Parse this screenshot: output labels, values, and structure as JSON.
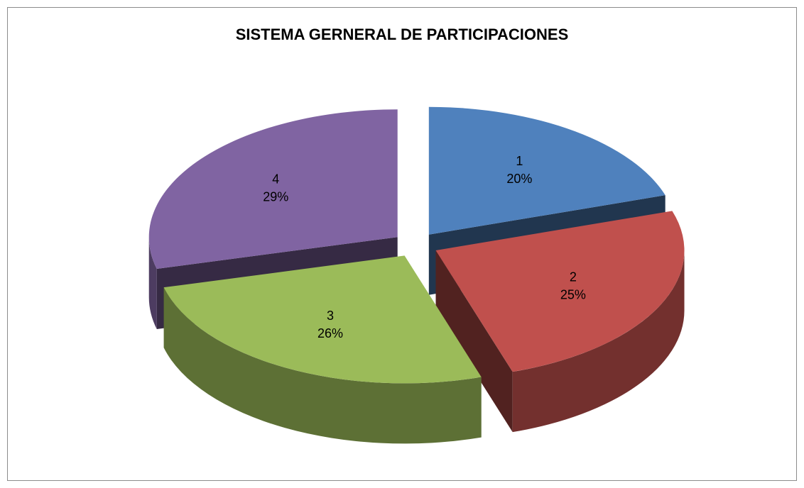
{
  "chart_data": {
    "type": "pie",
    "title": "SISTEMA GERNERAL DE PARTICIPACIONES",
    "categories": [
      "1",
      "2",
      "3",
      "4"
    ],
    "values": [
      20,
      25,
      26,
      29
    ],
    "value_labels": [
      "20%",
      "25%",
      "26%",
      "29%"
    ],
    "colors": [
      "#4f81bd",
      "#c0504d",
      "#9bbb59",
      "#8064a2"
    ]
  }
}
